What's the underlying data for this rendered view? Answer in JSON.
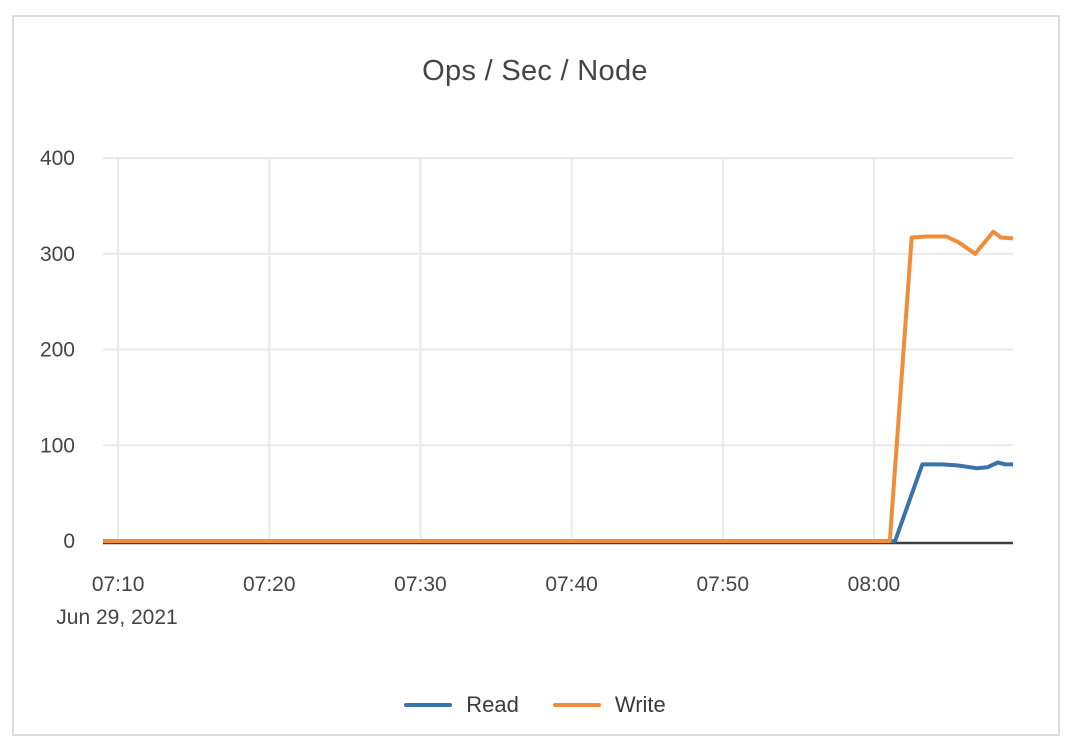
{
  "panel": {
    "border_color": "#dddddd",
    "background": "#ffffff"
  },
  "chart_data": {
    "type": "line",
    "title": "Ops / Sec / Node",
    "grid": true,
    "legend_position": "bottom",
    "x_axis": {
      "date_label": "Jun 29, 2021",
      "ticks": [
        "07:10",
        "07:20",
        "07:30",
        "07:40",
        "07:50",
        "08:00"
      ],
      "range": [
        "07:09:00",
        "08:09:12"
      ]
    },
    "y_axis": {
      "ticks": [
        0,
        100,
        200,
        300,
        400
      ],
      "range": [
        0,
        400
      ]
    },
    "colors": {
      "gridline": "#e9e9e9",
      "axis_line": "#3f3f3f",
      "tick_text": "#444444"
    },
    "series": [
      {
        "name": "Read",
        "color": "#3a73a9",
        "points": [
          [
            "07:09:00",
            0
          ],
          [
            "08:01:24",
            0
          ],
          [
            "08:03:12",
            80
          ],
          [
            "08:04:30",
            80
          ],
          [
            "08:05:30",
            79
          ],
          [
            "08:06:48",
            76
          ],
          [
            "08:07:30",
            77
          ],
          [
            "08:08:12",
            82
          ],
          [
            "08:08:42",
            80
          ],
          [
            "08:09:12",
            80
          ]
        ]
      },
      {
        "name": "Write",
        "color": "#f08d3a",
        "points": [
          [
            "07:09:00",
            0
          ],
          [
            "08:01:03",
            0
          ],
          [
            "08:02:30",
            317
          ],
          [
            "08:03:30",
            318
          ],
          [
            "08:04:48",
            318
          ],
          [
            "08:05:36",
            312
          ],
          [
            "08:06:42",
            300
          ],
          [
            "08:07:54",
            323
          ],
          [
            "08:08:24",
            317
          ],
          [
            "08:09:12",
            316
          ]
        ]
      }
    ]
  }
}
